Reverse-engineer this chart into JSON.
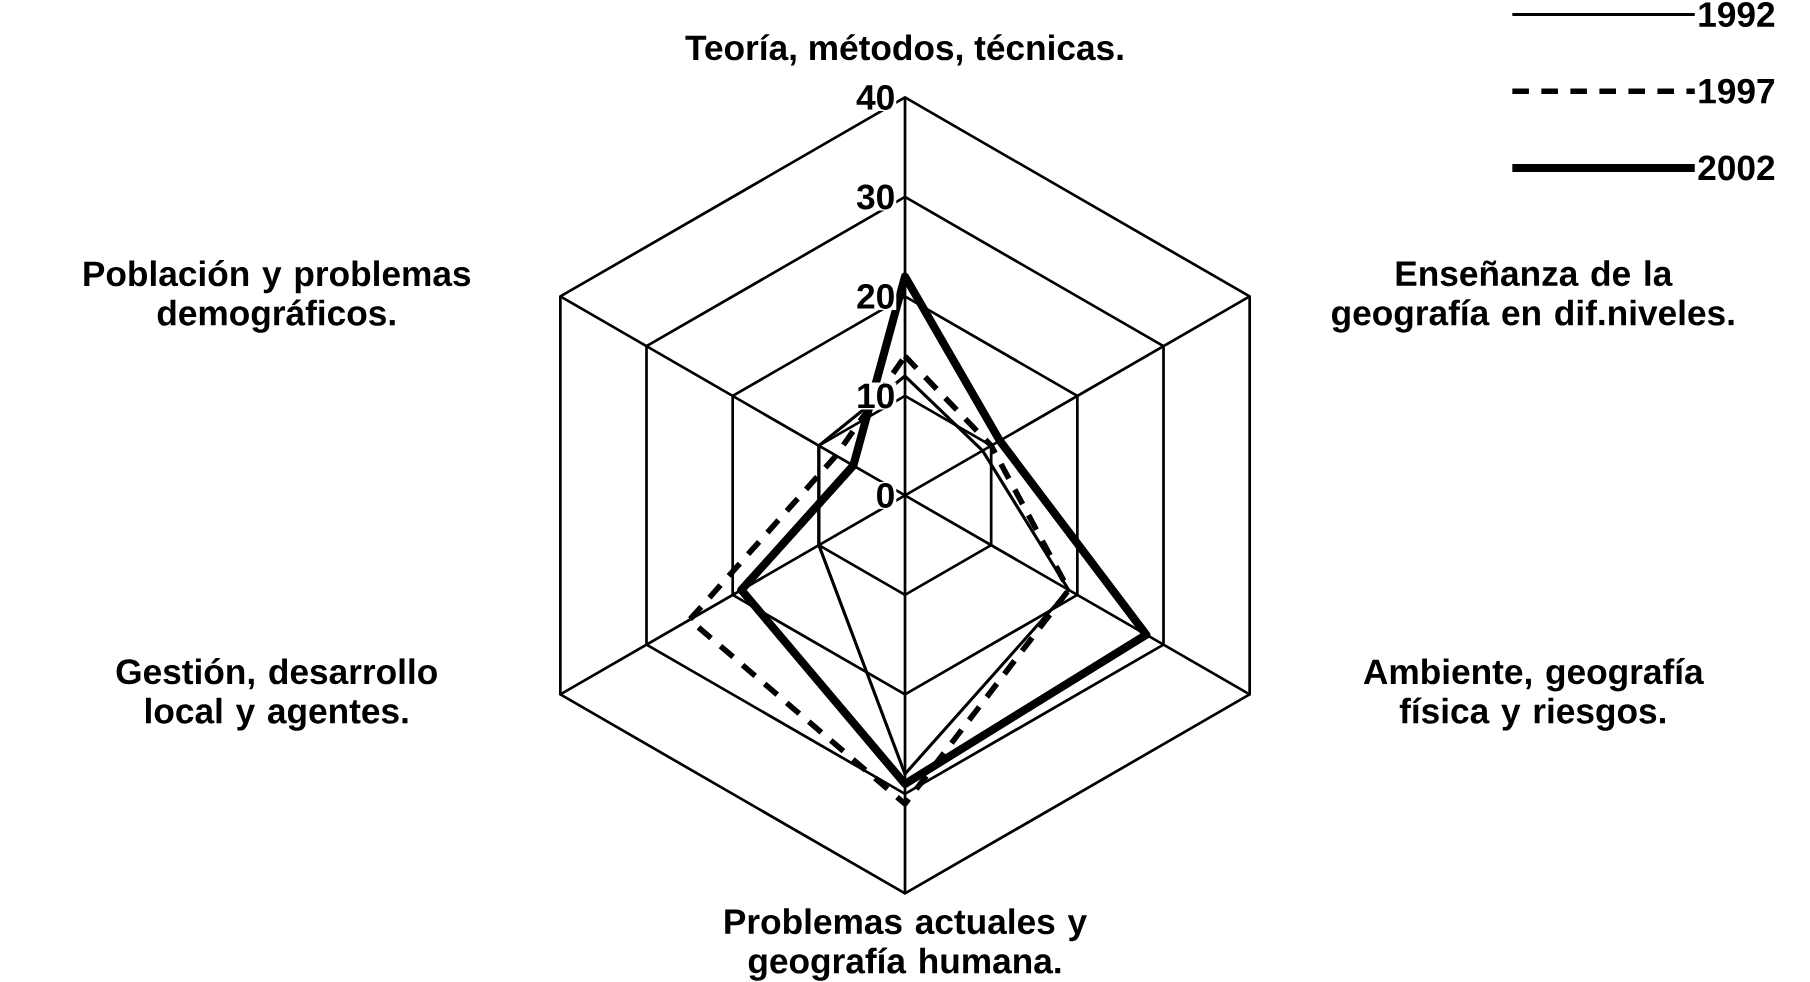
{
  "chart_data": {
    "type": "radar",
    "categories": [
      "Teoría, métodos, técnicas.",
      "Enseñanza de la geografía en dif.niveles.",
      "Ambiente, geografía física y riesgos.",
      "Problemas actuales y geografía humana.",
      "Gestión, desarrollo local y agentes.",
      "Población y problemas demográficos."
    ],
    "series": [
      {
        "name": "1992",
        "color": "#000000",
        "line_style": "solid",
        "values": [
          12,
          9,
          19,
          28,
          10,
          10
        ]
      },
      {
        "name": "1997",
        "color": "#000000",
        "line_style": "dashed",
        "values": [
          14,
          10,
          19,
          31,
          25,
          8
        ]
      },
      {
        "name": "2002",
        "color": "#000000",
        "line_style": "solid",
        "values": [
          22,
          11,
          28,
          29,
          19,
          6
        ]
      }
    ],
    "ylim": [
      0,
      40
    ],
    "yticks": [
      0,
      10,
      20,
      30,
      40
    ],
    "grid": true,
    "legend": "top right"
  }
}
